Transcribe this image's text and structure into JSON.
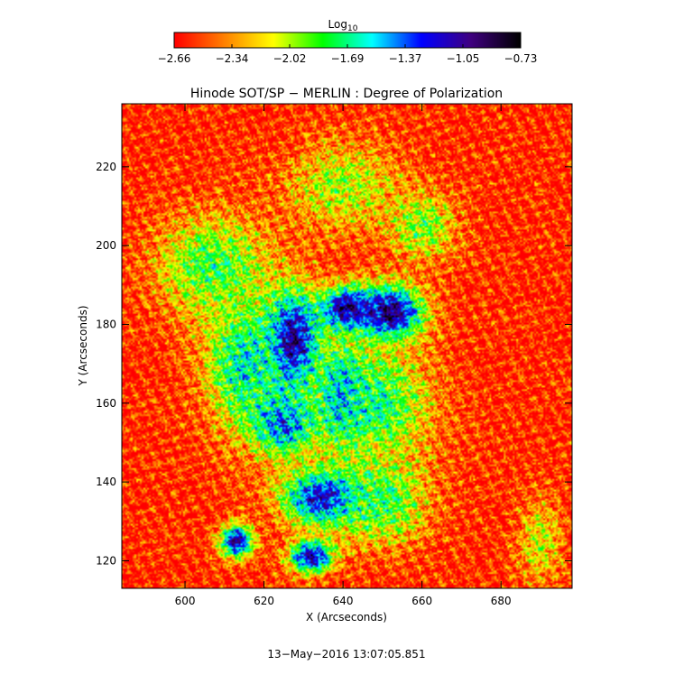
{
  "chart_data": {
    "type": "heatmap",
    "title": "Hinode SOT/SP − MERLIN : Degree of Polarization",
    "xlabel": "X (Arcseconds)",
    "ylabel": "Y (Arcseconds)",
    "xlim": [
      584,
      698
    ],
    "ylim": [
      113,
      236
    ],
    "x_ticks": [
      600,
      620,
      640,
      660,
      680
    ],
    "y_ticks": [
      120,
      140,
      160,
      180,
      200,
      220
    ],
    "colorbar": {
      "label_base": "Log",
      "label_subscript": "10",
      "min": -2.66,
      "max": -0.73,
      "ticks": [
        "−2.66",
        "−2.34",
        "−2.02",
        "−1.69",
        "−1.37",
        "−1.05",
        "−0.73"
      ],
      "colormap": [
        "#ff0000",
        "#ff8000",
        "#ffff00",
        "#00ff00",
        "#00ffff",
        "#0000ff",
        "#400080",
        "#000000"
      ]
    },
    "features": [
      {
        "x": 627,
        "y": 176,
        "sx": 5,
        "sy": 9,
        "value": -0.85
      },
      {
        "x": 652,
        "y": 183,
        "sx": 6,
        "sy": 5,
        "value": -0.9
      },
      {
        "x": 641,
        "y": 184,
        "sx": 5,
        "sy": 4,
        "value": -0.95
      },
      {
        "x": 636,
        "y": 136,
        "sx": 8,
        "sy": 5,
        "value": -1.0
      },
      {
        "x": 640,
        "y": 162,
        "sx": 4,
        "sy": 8,
        "value": -1.15
      },
      {
        "x": 613,
        "y": 125,
        "sx": 3,
        "sy": 3,
        "value": -1.05
      },
      {
        "x": 632,
        "y": 121,
        "sx": 4,
        "sy": 3,
        "value": -1.05
      },
      {
        "x": 625,
        "y": 155,
        "sx": 6,
        "sy": 6,
        "value": -1.3
      },
      {
        "x": 615,
        "y": 170,
        "sx": 7,
        "sy": 12,
        "value": -1.6
      },
      {
        "x": 648,
        "y": 160,
        "sx": 10,
        "sy": 10,
        "value": -1.7
      },
      {
        "x": 607,
        "y": 195,
        "sx": 10,
        "sy": 9,
        "value": -1.8
      },
      {
        "x": 650,
        "y": 135,
        "sx": 8,
        "sy": 8,
        "value": -1.8
      },
      {
        "x": 660,
        "y": 205,
        "sx": 6,
        "sy": 6,
        "value": -1.9
      },
      {
        "x": 640,
        "y": 215,
        "sx": 10,
        "sy": 8,
        "value": -2.0
      },
      {
        "x": 690,
        "y": 125,
        "sx": 4,
        "sy": 8,
        "value": -2.1
      }
    ],
    "background_value": -2.6
  },
  "timestamp": "13−May−2016 13:07:05.851"
}
